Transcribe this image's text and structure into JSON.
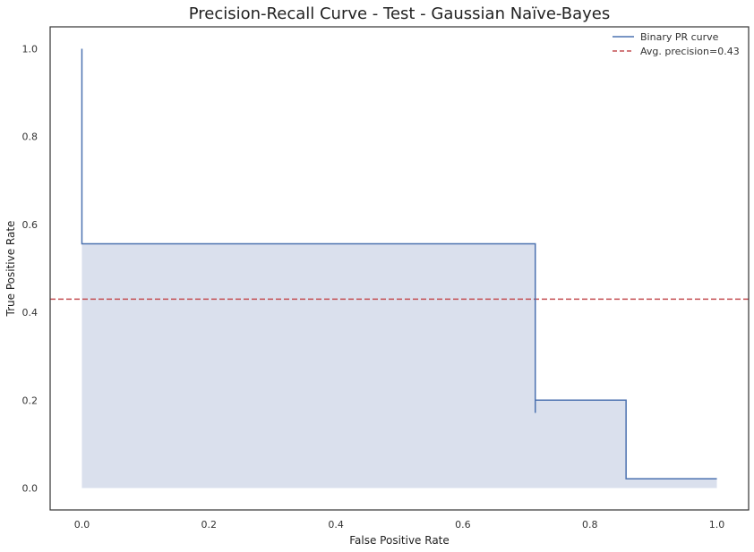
{
  "chart_data": {
    "type": "line",
    "title": "Precision-Recall Curve - Test - Gaussian Naïve-Bayes",
    "xlabel": "False Positive Rate",
    "ylabel": "True Positive Rate",
    "xlim": [
      -0.05,
      1.05
    ],
    "ylim": [
      -0.05,
      1.05
    ],
    "xticks": [
      0.0,
      0.2,
      0.4,
      0.6,
      0.8,
      1.0
    ],
    "xtick_labels": [
      "0.0",
      "0.2",
      "0.4",
      "0.6",
      "0.8",
      "1.0"
    ],
    "yticks": [
      0.0,
      0.2,
      0.4,
      0.6,
      0.8,
      1.0
    ],
    "ytick_labels": [
      "0.0",
      "0.2",
      "0.4",
      "0.6",
      "0.8",
      "1.0"
    ],
    "grid": false,
    "legend_position": "top-right",
    "series": [
      {
        "name": "Binary PR curve",
        "style": "step",
        "color": "#4c72b0",
        "fill_color": "#dae0ed",
        "x": [
          0.0,
          0.0,
          0.714,
          0.714,
          0.714,
          0.857,
          0.857,
          1.0
        ],
        "y": [
          1.0,
          0.556,
          0.556,
          0.171,
          0.2,
          0.2,
          0.021,
          0.021
        ]
      },
      {
        "name": "Avg. precision=0.43",
        "style": "dashed-hline",
        "color": "#c44e52",
        "y": 0.43
      }
    ]
  }
}
